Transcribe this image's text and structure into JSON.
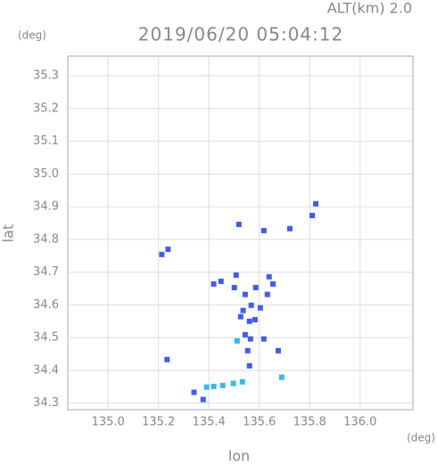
{
  "chart_data": {
    "type": "scatter",
    "title": "2019/06/20 05:04:12",
    "subtitle": "ALT(km) 2.0",
    "y_unit": "(deg)",
    "x_unit": "(deg)",
    "xlabel": "lon",
    "ylabel": "lat",
    "xlim": [
      134.84,
      136.21
    ],
    "ylim": [
      34.28,
      35.36
    ],
    "xticks": [
      {
        "value": 135,
        "label": "135.0"
      },
      {
        "value": 135.2,
        "label": "135.2"
      },
      {
        "value": 135.4,
        "label": "135.4"
      },
      {
        "value": 135.6,
        "label": "135.6"
      },
      {
        "value": 135.8,
        "label": "135.8"
      },
      {
        "value": 136,
        "label": "136.0"
      }
    ],
    "yticks": [
      34.3,
      34.4,
      34.5,
      34.6,
      34.7,
      34.8,
      34.9,
      {
        "value": 35,
        "label": "35.0"
      },
      35.1,
      35.2,
      35.3
    ],
    "grid": true,
    "series": [
      {
        "color": "#3f5cf0",
        "x": [
          135.213,
          135.238,
          135.234,
          135.81,
          135.824,
          135.519,
          135.618,
          135.721,
          135.508,
          135.544,
          135.568,
          135.536,
          135.561,
          135.526,
          135.583,
          135.544,
          135.565,
          135.554,
          135.561,
          135.618,
          135.675,
          135.639,
          135.632,
          135.654,
          135.586,
          135.419,
          135.448,
          135.501,
          135.604,
          135.341,
          135.377
        ],
        "y": [
          34.754,
          34.77,
          34.433,
          34.873,
          34.909,
          34.846,
          34.827,
          34.833,
          34.691,
          34.632,
          34.599,
          34.583,
          34.55,
          34.564,
          34.555,
          34.509,
          34.496,
          34.46,
          34.414,
          34.496,
          34.46,
          34.686,
          34.632,
          34.664,
          34.653,
          34.664,
          34.672,
          34.653,
          34.591,
          34.333,
          34.311
        ]
      },
      {
        "color": "#38b8f0",
        "x": [
          135.512,
          135.689,
          135.391,
          135.419,
          135.455,
          135.497,
          135.533
        ],
        "y": [
          34.49,
          34.379,
          34.349,
          34.351,
          34.354,
          34.36,
          34.365
        ]
      }
    ]
  }
}
